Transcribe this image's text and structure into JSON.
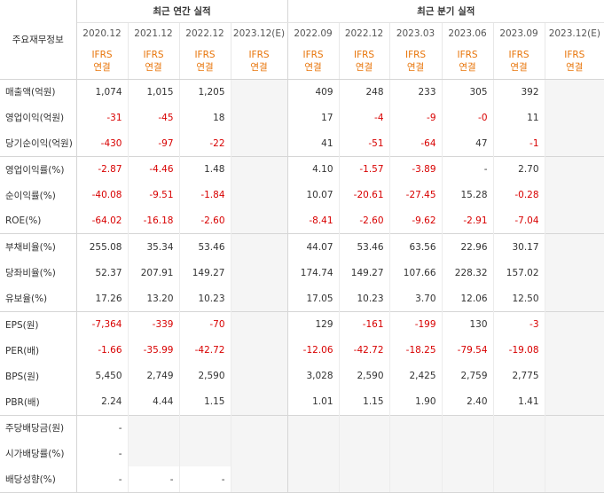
{
  "header": {
    "label_col": "주요재무정보",
    "annual_group": "최근 연간 실적",
    "quarterly_group": "최근 분기 실적",
    "annual_periods": [
      "2020.12",
      "2021.12",
      "2022.12",
      "2023.12(E)"
    ],
    "quarterly_periods": [
      "2022.09",
      "2022.12",
      "2023.03",
      "2023.06",
      "2023.09",
      "2023.12(E)"
    ],
    "ifrs_line1": "IFRS",
    "ifrs_line2": "연결"
  },
  "rows": [
    {
      "label": "매출액(억원)",
      "annual": [
        "1,074",
        "1,015",
        "1,205",
        ""
      ],
      "quarterly": [
        "409",
        "248",
        "233",
        "305",
        "392",
        ""
      ]
    },
    {
      "label": "영업이익(억원)",
      "annual": [
        "-31",
        "-45",
        "18",
        ""
      ],
      "quarterly": [
        "17",
        "-4",
        "-9",
        "-0",
        "11",
        ""
      ]
    },
    {
      "label": "당기순이익(억원)",
      "annual": [
        "-430",
        "-97",
        "-22",
        ""
      ],
      "quarterly": [
        "41",
        "-51",
        "-64",
        "47",
        "-1",
        ""
      ]
    },
    {
      "label": "영업이익률(%)",
      "annual": [
        "-2.87",
        "-4.46",
        "1.48",
        ""
      ],
      "quarterly": [
        "4.10",
        "-1.57",
        "-3.89",
        "-",
        "2.70",
        ""
      ]
    },
    {
      "label": "순이익률(%)",
      "annual": [
        "-40.08",
        "-9.51",
        "-1.84",
        ""
      ],
      "quarterly": [
        "10.07",
        "-20.61",
        "-27.45",
        "15.28",
        "-0.28",
        ""
      ]
    },
    {
      "label": "ROE(%)",
      "annual": [
        "-64.02",
        "-16.18",
        "-2.60",
        ""
      ],
      "quarterly": [
        "-8.41",
        "-2.60",
        "-9.62",
        "-2.91",
        "-7.04",
        ""
      ]
    },
    {
      "label": "부채비율(%)",
      "annual": [
        "255.08",
        "35.34",
        "53.46",
        ""
      ],
      "quarterly": [
        "44.07",
        "53.46",
        "63.56",
        "22.96",
        "30.17",
        ""
      ]
    },
    {
      "label": "당좌비율(%)",
      "annual": [
        "52.37",
        "207.91",
        "149.27",
        ""
      ],
      "quarterly": [
        "174.74",
        "149.27",
        "107.66",
        "228.32",
        "157.02",
        ""
      ]
    },
    {
      "label": "유보율(%)",
      "annual": [
        "17.26",
        "13.20",
        "10.23",
        ""
      ],
      "quarterly": [
        "17.05",
        "10.23",
        "3.70",
        "12.06",
        "12.50",
        ""
      ]
    },
    {
      "label": "EPS(원)",
      "annual": [
        "-7,364",
        "-339",
        "-70",
        ""
      ],
      "quarterly": [
        "129",
        "-161",
        "-199",
        "130",
        "-3",
        ""
      ]
    },
    {
      "label": "PER(배)",
      "annual": [
        "-1.66",
        "-35.99",
        "-42.72",
        ""
      ],
      "quarterly": [
        "-12.06",
        "-42.72",
        "-18.25",
        "-79.54",
        "-19.08",
        ""
      ]
    },
    {
      "label": "BPS(원)",
      "annual": [
        "5,450",
        "2,749",
        "2,590",
        ""
      ],
      "quarterly": [
        "3,028",
        "2,590",
        "2,425",
        "2,759",
        "2,775",
        ""
      ]
    },
    {
      "label": "PBR(배)",
      "annual": [
        "2.24",
        "4.44",
        "1.15",
        ""
      ],
      "quarterly": [
        "1.01",
        "1.15",
        "1.90",
        "2.40",
        "1.41",
        ""
      ]
    },
    {
      "label": "주당배당금(원)",
      "annual": [
        "-",
        "",
        "",
        ""
      ],
      "quarterly": [
        "",
        "",
        "",
        "",
        "",
        ""
      ]
    },
    {
      "label": "시가배당률(%)",
      "annual": [
        "-",
        "",
        "",
        ""
      ],
      "quarterly": [
        "",
        "",
        "",
        "",
        "",
        ""
      ]
    },
    {
      "label": "배당성향(%)",
      "annual": [
        "-",
        "-",
        "-",
        ""
      ],
      "quarterly": [
        "",
        "",
        "",
        "",
        "",
        ""
      ]
    }
  ],
  "colors": {
    "negative": "#d80000",
    "ifrs": "#e8750a",
    "estimate_bg": "#f5f5f5",
    "grid": "#d6d6d6"
  }
}
